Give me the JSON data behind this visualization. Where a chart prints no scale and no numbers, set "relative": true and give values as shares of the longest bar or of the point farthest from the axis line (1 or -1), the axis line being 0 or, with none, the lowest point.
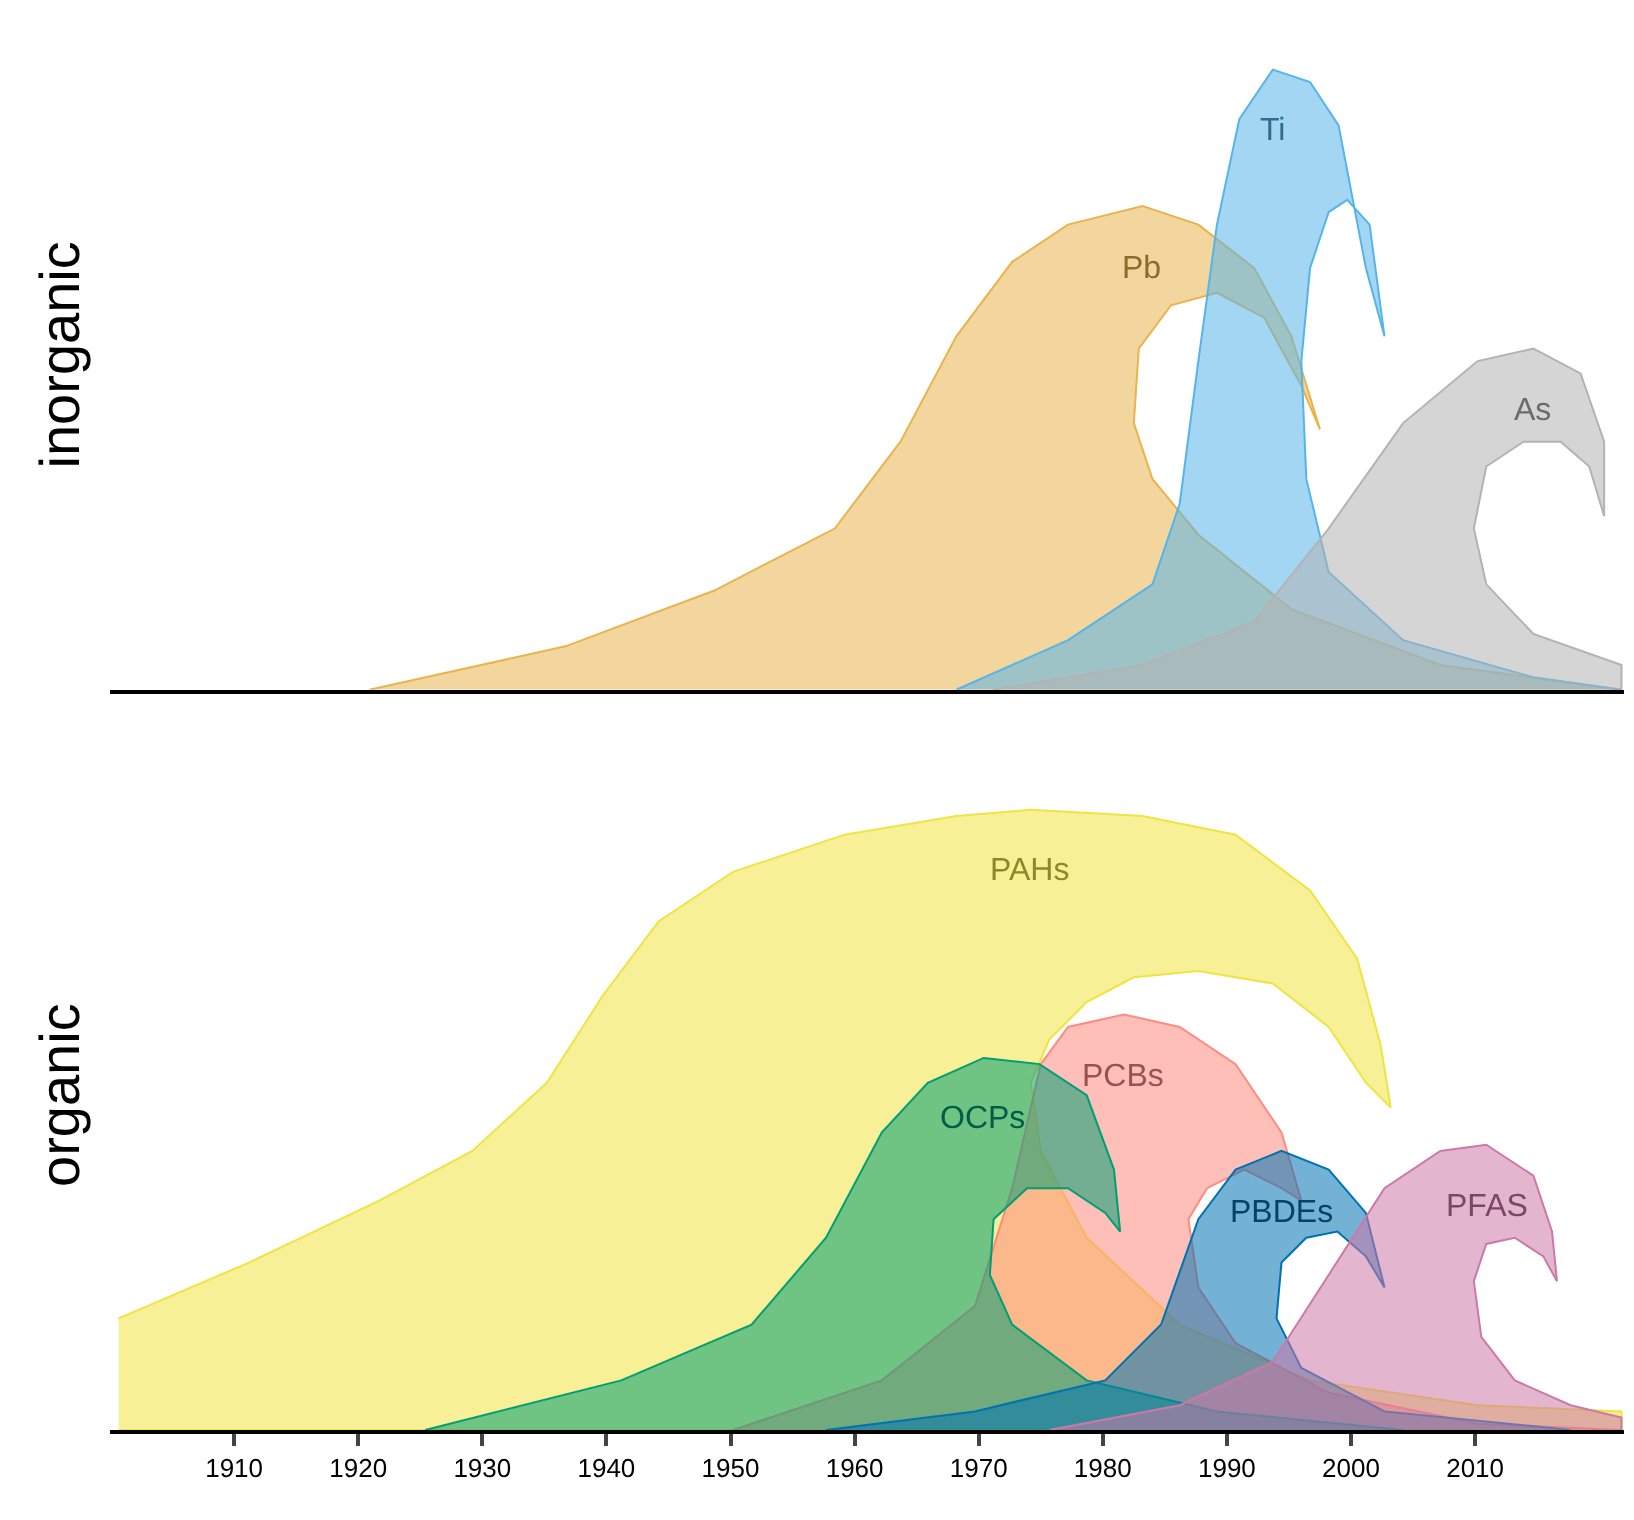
{
  "chart_data": [
    {
      "type": "area",
      "relative": true,
      "ylabel": "inorganic",
      "xlim": [
        1900,
        2022
      ],
      "xticks": [
        1910,
        1920,
        1930,
        1940,
        1950,
        1960,
        1970,
        1980,
        1990,
        2000,
        2010
      ],
      "tick_labels": false,
      "series": [
        {
          "name": "Pb",
          "color": "#e9b44c",
          "x": [
            1920.9,
            1936.7,
            1948.7,
            1958.4,
            1963.7,
            1968.2,
            1972.7,
            1977.2,
            1983.2,
            1987.7,
            1992.2,
            1995.2,
            1997.5,
            1996.0,
            1993.0,
            1989.2,
            1985.5,
            1982.9,
            1982.5,
            1984.0,
            1987.7,
            1995.2,
            2007.2,
            2021.8
          ],
          "values": [
            0,
            0.07,
            0.16,
            0.26,
            0.4,
            0.57,
            0.69,
            0.75,
            0.78,
            0.75,
            0.68,
            0.57,
            0.42,
            0.49,
            0.6,
            0.64,
            0.62,
            0.55,
            0.43,
            0.34,
            0.25,
            0.13,
            0.04,
            0
          ]
        },
        {
          "name": "Ti",
          "color": "#56b4e9",
          "x": [
            1968.2,
            1977.2,
            1984.0,
            1986.2,
            1987.7,
            1989.2,
            1991.0,
            1993.7,
            1996.7,
            1999.0,
            2001.2,
            2002.7,
            2001.5,
            1999.7,
            1998.2,
            1996.7,
            1996.0,
            1996.4,
            1998.2,
            2004.2,
            2014.7,
            2021.8
          ],
          "values": [
            0,
            0.08,
            0.17,
            0.3,
            0.53,
            0.75,
            0.92,
            1.0,
            0.98,
            0.91,
            0.68,
            0.57,
            0.75,
            0.79,
            0.77,
            0.68,
            0.53,
            0.34,
            0.19,
            0.08,
            0.02,
            0
          ]
        },
        {
          "name": "As",
          "color": "#b3b3b3",
          "x": [
            1971.2,
            1983.2,
            1992.2,
            1998.2,
            2004.2,
            2010.2,
            2014.7,
            2018.5,
            2020.4,
            2020.4,
            2019.2,
            2016.9,
            2013.9,
            2010.9,
            2009.9,
            2010.9,
            2014.7,
            2021.8,
            2021.8
          ],
          "values": [
            0,
            0.04,
            0.11,
            0.26,
            0.43,
            0.53,
            0.55,
            0.51,
            0.4,
            0.28,
            0.36,
            0.4,
            0.4,
            0.36,
            0.26,
            0.17,
            0.09,
            0.04,
            0
          ]
        }
      ]
    },
    {
      "type": "area",
      "relative": true,
      "ylabel": "organic",
      "xlim": [
        1900,
        2022
      ],
      "xticks": [
        1910,
        1920,
        1930,
        1940,
        1950,
        1960,
        1970,
        1980,
        1990,
        2000,
        2010
      ],
      "series": [
        {
          "name": "PAHs",
          "color": "#f0e442",
          "x": [
            1900.7,
            1911.2,
            1921.7,
            1929.2,
            1935.2,
            1939.7,
            1944.2,
            1950.2,
            1959.2,
            1968.2,
            1974.2,
            1983.2,
            1990.7,
            1996.7,
            2000.5,
            2002.4,
            2003.2,
            2001.2,
            1998.2,
            1993.7,
            1987.7,
            1982.5,
            1978.7,
            1975.7,
            1974.2,
            1975.0,
            1978.7,
            1986.2,
            1996.7,
            2010.2,
            2021.8,
            2021.8,
            1900.7
          ],
          "values": [
            0.18,
            0.27,
            0.37,
            0.45,
            0.56,
            0.7,
            0.82,
            0.9,
            0.96,
            0.99,
            1.0,
            0.99,
            0.96,
            0.87,
            0.76,
            0.62,
            0.52,
            0.56,
            0.65,
            0.72,
            0.74,
            0.73,
            0.69,
            0.63,
            0.56,
            0.45,
            0.31,
            0.17,
            0.08,
            0.04,
            0.03,
            0,
            0
          ]
        },
        {
          "name": "PCBs",
          "color": "#ff8a80",
          "x": [
            1950.2,
            1962.2,
            1969.7,
            1972.7,
            1975.0,
            1977.2,
            1981.7,
            1986.2,
            1990.7,
            1994.4,
            1996.0,
            1994.4,
            1991.4,
            1988.4,
            1986.9,
            1987.7,
            1990.7,
            1998.2,
            2010.2,
            2021.8
          ],
          "values": [
            0,
            0.08,
            0.2,
            0.39,
            0.59,
            0.65,
            0.67,
            0.65,
            0.59,
            0.48,
            0.37,
            0.39,
            0.42,
            0.39,
            0.34,
            0.23,
            0.14,
            0.06,
            0.01,
            0
          ]
        },
        {
          "name": "OCPs",
          "color": "#009e73",
          "x": [
            1925.4,
            1941.2,
            1951.7,
            1957.7,
            1962.2,
            1965.9,
            1970.4,
            1974.9,
            1978.7,
            1980.9,
            1981.4,
            1980.2,
            1977.2,
            1973.9,
            1971.2,
            1970.9,
            1972.7,
            1978.7,
            1989.2,
            2004.2
          ],
          "values": [
            0,
            0.08,
            0.17,
            0.31,
            0.48,
            0.56,
            0.6,
            0.59,
            0.54,
            0.42,
            0.32,
            0.35,
            0.39,
            0.39,
            0.34,
            0.25,
            0.17,
            0.08,
            0.03,
            0
          ]
        },
        {
          "name": "PBDEs",
          "color": "#0072b2",
          "x": [
            1957.7,
            1969.7,
            1980.2,
            1984.7,
            1987.7,
            1990.7,
            1994.4,
            1998.2,
            2001.2,
            2002.7,
            2001.2,
            1998.9,
            1996.4,
            1994.4,
            1994.0,
            1996.0,
            2002.7,
            2017.7
          ],
          "values": [
            0,
            0.03,
            0.08,
            0.17,
            0.34,
            0.42,
            0.45,
            0.42,
            0.35,
            0.23,
            0.28,
            0.32,
            0.31,
            0.27,
            0.18,
            0.1,
            0.03,
            0
          ]
        },
        {
          "name": "PFAS",
          "color": "#cc79a7",
          "x": [
            1975.7,
            1986.2,
            1993.7,
            1998.2,
            2002.7,
            2007.2,
            2010.9,
            2014.7,
            2016.2,
            2016.6,
            2015.5,
            2013.2,
            2010.9,
            2009.9,
            2010.5,
            2013.2,
            2017.7,
            2021.8,
            2021.8
          ],
          "values": [
            0,
            0.04,
            0.11,
            0.25,
            0.39,
            0.45,
            0.46,
            0.41,
            0.32,
            0.24,
            0.28,
            0.31,
            0.3,
            0.24,
            0.15,
            0.08,
            0.04,
            0.02,
            0
          ]
        }
      ]
    }
  ]
}
